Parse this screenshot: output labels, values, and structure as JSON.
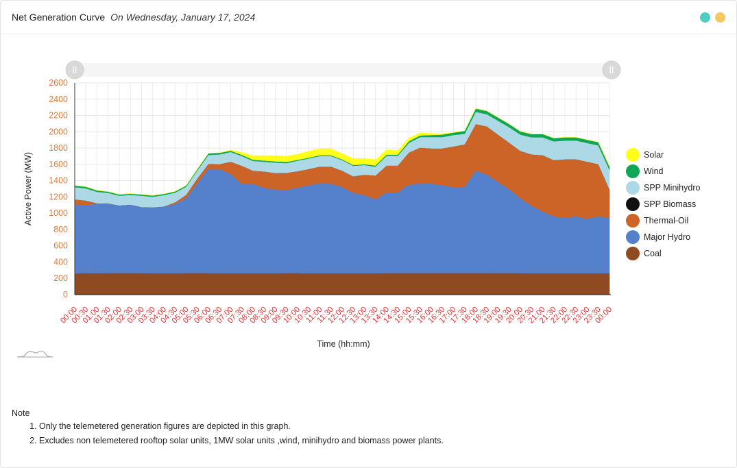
{
  "header": {
    "title": "Net Generation Curve",
    "subtitle": "On Wednesday, January 17, 2024",
    "accent_colors": [
      "#4ecdc4",
      "#f7c95c"
    ]
  },
  "note": {
    "heading": "Note",
    "items": [
      "Only the telemetered generation figures are depicted in this graph.",
      "Excludes non telemetered rooftop solar units, 1MW solar units ,wind, minihydro and biomass power plants."
    ]
  },
  "chart_data": {
    "type": "area",
    "stacked": true,
    "xlabel": "Time (hh:mm)",
    "ylabel": "Active Power (MW)",
    "ylim": [
      0,
      2600
    ],
    "yticks": [
      0,
      200,
      400,
      600,
      800,
      1000,
      1200,
      1400,
      1600,
      1800,
      2000,
      2200,
      2400,
      2600
    ],
    "grid": true,
    "legend_position": "right",
    "x": [
      "00:00",
      "00:30",
      "01:00",
      "01:30",
      "02:00",
      "02:30",
      "03:00",
      "03:30",
      "04:00",
      "04:30",
      "05:00",
      "05:30",
      "06:00",
      "06:30",
      "07:00",
      "07:30",
      "08:00",
      "08:30",
      "09:00",
      "09:30",
      "10:00",
      "10:30",
      "11:00",
      "11:30",
      "12:00",
      "12:30",
      "13:00",
      "13:30",
      "14:00",
      "14:30",
      "15:00",
      "15:30",
      "16:00",
      "16:30",
      "17:00",
      "17:30",
      "18:00",
      "18:30",
      "19:00",
      "19:30",
      "20:00",
      "20:30",
      "21:00",
      "21:30",
      "22:00",
      "22:30",
      "23:00",
      "23:30",
      "00:00"
    ],
    "series": [
      {
        "name": "Coal",
        "color": "#8f4a21",
        "values": [
          260,
          265,
          262,
          265,
          265,
          265,
          265,
          262,
          262,
          262,
          265,
          265,
          265,
          262,
          262,
          262,
          262,
          262,
          262,
          265,
          265,
          262,
          262,
          262,
          262,
          262,
          262,
          262,
          265,
          265,
          265,
          265,
          265,
          265,
          265,
          265,
          265,
          265,
          265,
          265,
          265,
          262,
          262,
          262,
          262,
          262,
          262,
          262,
          262
        ]
      },
      {
        "name": "Major Hydro",
        "color": "#5580cc",
        "values": [
          850,
          830,
          860,
          855,
          830,
          840,
          810,
          810,
          820,
          850,
          920,
          1100,
          1280,
          1280,
          1220,
          1100,
          1100,
          1050,
          1030,
          1020,
          1050,
          1080,
          1110,
          1100,
          1060,
          990,
          960,
          910,
          990,
          990,
          1090,
          1100,
          1100,
          1080,
          1055,
          1060,
          1260,
          1210,
          1120,
          1030,
          920,
          830,
          760,
          700,
          680,
          700,
          670,
          700,
          680
        ]
      },
      {
        "name": "Thermal-Oil",
        "color": "#cd6427",
        "values": [
          60,
          60,
          0,
          0,
          0,
          0,
          0,
          0,
          0,
          20,
          40,
          60,
          60,
          60,
          150,
          220,
          160,
          200,
          200,
          210,
          200,
          200,
          200,
          210,
          200,
          200,
          250,
          290,
          330,
          330,
          390,
          440,
          430,
          450,
          500,
          520,
          570,
          590,
          580,
          570,
          580,
          630,
          690,
          690,
          720,
          700,
          700,
          640,
          350
        ]
      },
      {
        "name": "SPP Biomass",
        "color": "#111111",
        "values": [
          0,
          0,
          0,
          0,
          0,
          0,
          0,
          0,
          0,
          0,
          0,
          0,
          0,
          0,
          0,
          0,
          0,
          0,
          0,
          0,
          0,
          0,
          0,
          0,
          0,
          0,
          0,
          0,
          0,
          0,
          0,
          0,
          0,
          0,
          0,
          0,
          0,
          0,
          0,
          0,
          0,
          0,
          0,
          0,
          0,
          0,
          0,
          0,
          0
        ]
      },
      {
        "name": "SPP Minihydro",
        "color": "#add8e6",
        "values": [
          150,
          150,
          140,
          130,
          120,
          120,
          140,
          130,
          140,
          120,
          100,
          100,
          110,
          120,
          120,
          120,
          120,
          120,
          130,
          120,
          130,
          130,
          130,
          130,
          130,
          130,
          120,
          110,
          120,
          120,
          120,
          130,
          140,
          140,
          140,
          130,
          150,
          150,
          170,
          190,
          200,
          210,
          220,
          230,
          230,
          230,
          230,
          230,
          240
        ]
      },
      {
        "name": "Wind",
        "color": "#0fa756",
        "values": [
          20,
          20,
          18,
          15,
          15,
          15,
          15,
          15,
          15,
          15,
          15,
          15,
          20,
          20,
          15,
          15,
          15,
          15,
          15,
          15,
          10,
          10,
          10,
          10,
          10,
          10,
          10,
          15,
          15,
          15,
          20,
          20,
          25,
          30,
          30,
          35,
          40,
          40,
          40,
          40,
          40,
          40,
          40,
          40,
          40,
          40,
          40,
          40,
          40
        ]
      },
      {
        "name": "Solar",
        "color": "#ffff1a",
        "values": [
          0,
          0,
          0,
          0,
          0,
          0,
          0,
          0,
          0,
          0,
          0,
          0,
          0,
          0,
          10,
          30,
          50,
          60,
          70,
          70,
          70,
          80,
          80,
          80,
          70,
          80,
          70,
          70,
          60,
          50,
          40,
          30,
          20,
          10,
          5,
          0,
          0,
          0,
          0,
          0,
          0,
          0,
          0,
          0,
          0,
          0,
          0,
          0,
          0
        ]
      }
    ],
    "legend_order": [
      "Solar",
      "Wind",
      "SPP Minihydro",
      "SPP Biomass",
      "Thermal-Oil",
      "Major Hydro",
      "Coal"
    ],
    "axis_label_colors": {
      "y_ticks": "#e07b39",
      "x_ticks": "#e03131"
    }
  }
}
